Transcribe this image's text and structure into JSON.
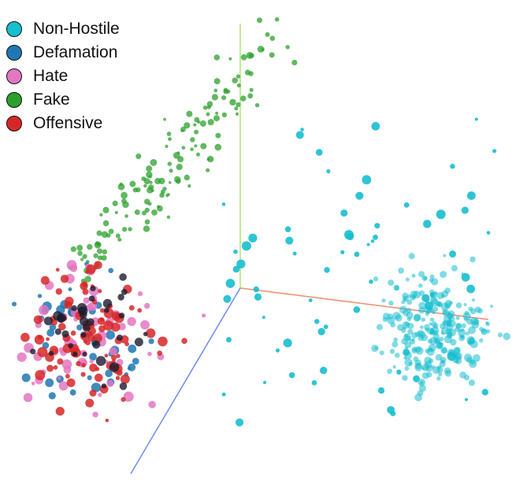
{
  "chart_data": {
    "type": "scatter",
    "dimensions": 3,
    "title": "",
    "legend_position": "top-left",
    "grid": false,
    "axes_visible": [
      "x",
      "y",
      "z"
    ],
    "axis_colors": {
      "x": "#f08c6e",
      "y": "#aee76e",
      "z": "#6c8cf0"
    },
    "series": [
      {
        "name": "Non-Hostile",
        "color": "#17becf",
        "cluster": "right",
        "approx_points": 330
      },
      {
        "name": "Defamation",
        "color": "#1f77b4",
        "cluster": "left",
        "approx_points": 40
      },
      {
        "name": "Hate",
        "color": "#e377c2",
        "cluster": "left",
        "approx_points": 60
      },
      {
        "name": "Fake",
        "color": "#2ca02c",
        "cluster": "upper-arc",
        "approx_points": 150
      },
      {
        "name": "Offensive",
        "color": "#d62728",
        "cluster": "left",
        "approx_points": 90
      }
    ]
  }
}
